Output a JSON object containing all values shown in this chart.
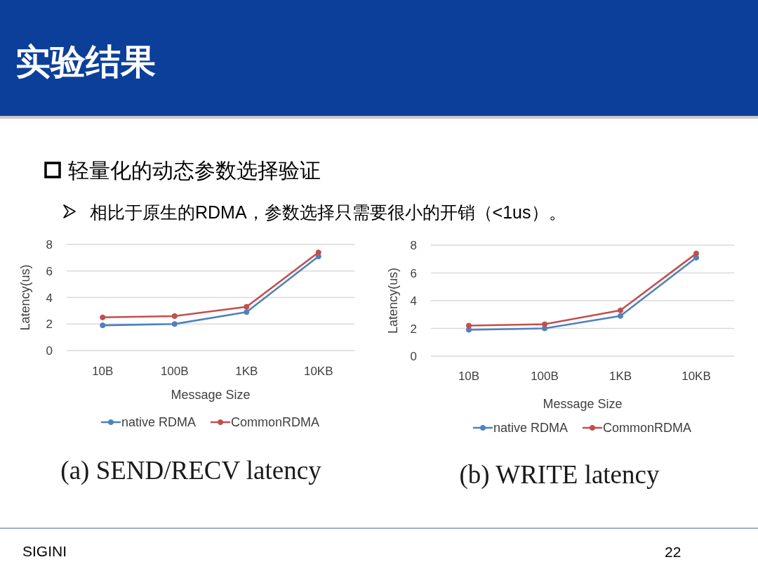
{
  "chart_data": [
    {
      "type": "line",
      "title": "(a) SEND/RECV latency",
      "annotations": [
        "实验结果",
        "轻量化的动态参数选择验证",
        "相比于原生的RDMA，参数选择只需要很小的开销（<1us）。"
      ],
      "xlabel": "Message Size",
      "ylabel": "Latency(us)",
      "categories": [
        "10B",
        "100B",
        "1KB",
        "10KB"
      ],
      "series": [
        {
          "name": "native RDMA",
          "color": "#4f81bd",
          "values": [
            1.9,
            2.0,
            2.9,
            7.1
          ]
        },
        {
          "name": "CommonRDMA",
          "color": "#c0504d",
          "values": [
            2.5,
            2.6,
            3.3,
            7.4
          ]
        }
      ],
      "ylim": [
        0,
        8
      ],
      "yticks": [
        0,
        2,
        4,
        6,
        8
      ],
      "grid": "y",
      "legend": "bottom",
      "marker": "circle",
      "line_style": "solid"
    },
    {
      "type": "line",
      "title": "(b) WRITE latency",
      "annotations": [
        "SIGINI",
        "22"
      ],
      "xlabel": "Message Size",
      "ylabel": "Latency(us)",
      "categories": [
        "10B",
        "100B",
        "1KB",
        "10KB"
      ],
      "series": [
        {
          "name": "native RDMA",
          "color": "#4f81bd",
          "values": [
            1.9,
            2.0,
            2.9,
            7.1
          ]
        },
        {
          "name": "CommonRDMA",
          "color": "#c0504d",
          "values": [
            2.2,
            2.3,
            3.3,
            7.4
          ]
        }
      ],
      "ylim": [
        0,
        8
      ],
      "yticks": [
        0,
        2,
        4,
        6,
        8
      ],
      "grid": "y",
      "legend": "bottom",
      "marker": "circle",
      "line_style": "solid"
    }
  ]
}
